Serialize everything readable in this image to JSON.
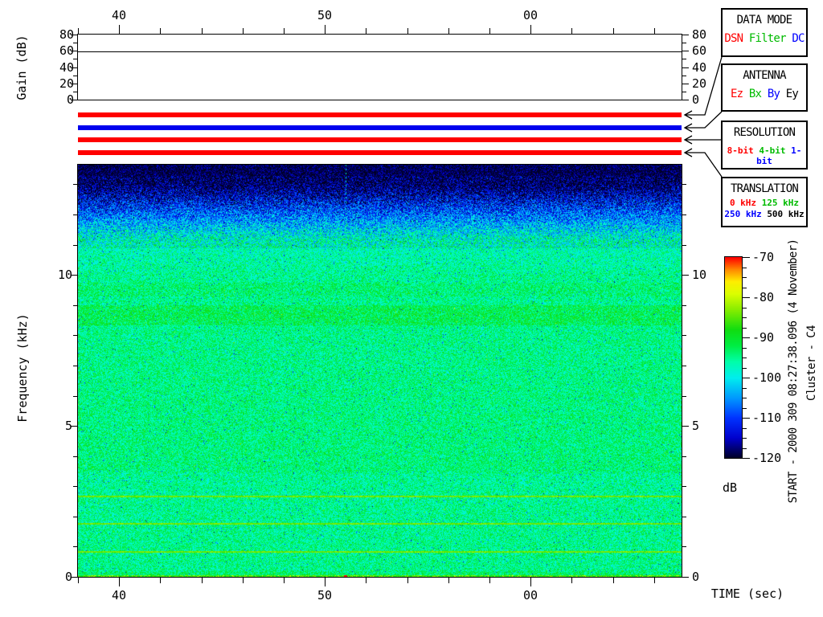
{
  "accent_colors": {
    "red": "#ff0000",
    "green": "#00bb00",
    "blue": "#0000ff",
    "black": "#000000"
  },
  "gain_panel": {
    "ylabel": "Gain (dB)",
    "yticks": [
      "80",
      "60",
      "40",
      "20",
      "0"
    ],
    "trace_db": 60
  },
  "time_axis": {
    "label": "TIME (sec)",
    "major_ticklabels": [
      "40",
      "50",
      "00"
    ],
    "minor_tick_interval_sec": 2
  },
  "freq_axis": {
    "label": "Frequency (kHz)",
    "ticklabels": [
      "10",
      "5",
      "0"
    ]
  },
  "colorbar": {
    "label": "dB",
    "ticklabels": [
      "-70",
      "-80",
      "-90",
      "-100",
      "-110",
      "-120"
    ]
  },
  "legend_panels": [
    {
      "title": "DATA MODE",
      "items": [
        {
          "label": "DSN",
          "color": "red"
        },
        {
          "label": "Filter",
          "color": "green"
        },
        {
          "label": "DC",
          "color": "blue"
        }
      ]
    },
    {
      "title": "ANTENNA",
      "items": [
        {
          "label": "Ez",
          "color": "red"
        },
        {
          "label": "Bx",
          "color": "green"
        },
        {
          "label": "By",
          "color": "blue"
        },
        {
          "label": "Ey",
          "color": "black"
        }
      ]
    },
    {
      "title": "RESOLUTION",
      "items": [
        {
          "label": "8-bit",
          "color": "red"
        },
        {
          "label": "4-bit",
          "color": "green"
        },
        {
          "label": "1-bit",
          "color": "blue"
        }
      ]
    },
    {
      "title": "TRANSLATION",
      "row1": [
        {
          "label": "0 kHz",
          "color": "red"
        },
        {
          "label": "125 kHz",
          "color": "green"
        }
      ],
      "row2": [
        {
          "label": "250 kHz",
          "color": "blue"
        },
        {
          "label": "500 kHz",
          "color": "black"
        }
      ]
    }
  ],
  "status_bars": [
    {
      "name": "data-mode",
      "selected": "DSN",
      "color": "#ff0000"
    },
    {
      "name": "antenna",
      "selected": "By",
      "color": "#0000ee"
    },
    {
      "name": "resolution",
      "selected": "8-bit",
      "color": "#ff0000"
    },
    {
      "name": "translation",
      "selected": "0 kHz",
      "color": "#ff0000"
    }
  ],
  "side_text": {
    "start": "START - 2000 309 08:27:38.096 (4 November)",
    "spacecraft": "Cluster - C4"
  },
  "chart_data": [
    {
      "type": "line",
      "title": "Receiver gain vs time",
      "ylabel": "Gain (dB)",
      "ylim": [
        0,
        80
      ],
      "yticks": [
        0,
        20,
        40,
        60,
        80
      ],
      "x_major_ticklabels": [
        "40",
        "50",
        "00"
      ],
      "x_minor_tick_interval_sec": 2,
      "series": [
        {
          "name": "gain",
          "values": "constant 60 dB across the whole interval (flat horizontal line)"
        }
      ],
      "grid": false
    },
    {
      "type": "heatmap",
      "title": "Wideband spectrogram",
      "xlabel": "TIME (sec)",
      "x_major_ticklabels": [
        "40",
        "50",
        "00"
      ],
      "x_minor_tick_interval_sec": 2,
      "x_span_sec": 29.3,
      "ylabel": "Frequency (kHz)",
      "ylim": [
        0,
        13.65
      ],
      "yticks": [
        0,
        5,
        10
      ],
      "y_minor_tick_interval_khz": 1,
      "color_scale": {
        "label": "dB",
        "min": -120,
        "max": -70,
        "major_tick_step": 10,
        "minor_tick_step": 2.5,
        "colormap": "rainbow: dark navy (-120) -> blue -> cyan -> green -> yellow -> orange -> red (-70)"
      },
      "features": [
        "above ~12.8 kHz: uniform dark navy noise floor near -120 dB with sparse blue dots",
        "12.8 to ~11.2 kHz: speckled blue transition, noise floor rising to ~-98 dB",
        "~11.2 to 10 kHz: cyan/teal band around -97 dB",
        "below 10 kHz: green background ~-95 to -93 dB with cyan and sparse dark speckle",
        "yellow-green enhanced band near 8.4-9.0 kHz (~-92 dB)",
        "thin yellow interference lines near 2.67, 1.78 and 0.85 kHz",
        "slightly more cyan (weaker) background below ~3.4 kHz",
        "yellow/orange edge at 0 kHz with a red spot near t=45.5 s",
        "vertical dashed interference spike near t=45.5 s in the dark region above 11 kHz"
      ]
    }
  ]
}
